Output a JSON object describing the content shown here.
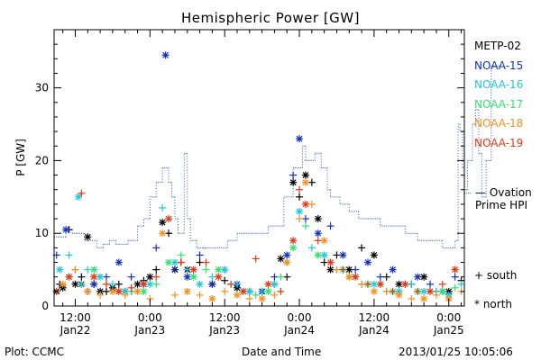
{
  "colors": {
    "METP-02": "#000000",
    "NOAA-15": "#1030c0",
    "NOAA-16": "#20c8d8",
    "NOAA-17": "#30e070",
    "NOAA-18": "#f09020",
    "NOAA-19": "#e03818",
    "hpi_line": "#2a5fc0"
  },
  "labels": {
    "footer_left": "Plot: CCMC",
    "footer_right": "2013/01/25 10:05:06",
    "hpi_line1": "— Ovation",
    "hpi_line2": "Prime HPI",
    "south": "+ south",
    "north": "* north"
  },
  "chart_data": {
    "type": "scatter",
    "title": "Hemispheric Power [GW]",
    "xlabel": "Date and Time",
    "ylabel": "P [GW]",
    "ylim": [
      0,
      38
    ],
    "xlim_hours": [
      -3.4,
      62.5
    ],
    "y_ticks": [
      0,
      10,
      20,
      30
    ],
    "x_ticks": [
      {
        "hour": 0,
        "line1": "12:00",
        "line2": "Jan22"
      },
      {
        "hour": 12,
        "line1": "0:00",
        "line2": "Jan23"
      },
      {
        "hour": 24,
        "line1": "12:00",
        "line2": "Jan23"
      },
      {
        "hour": 36,
        "line1": "0:00",
        "line2": "Jan24"
      },
      {
        "hour": 48,
        "line1": "12:00",
        "line2": "Jan24"
      },
      {
        "hour": 60,
        "line1": "0:00",
        "line2": "Jan25"
      }
    ],
    "legend": [
      "METP-02",
      "NOAA-15",
      "NOAA-16",
      "NOAA-17",
      "NOAA-18",
      "NOAA-19"
    ],
    "hpi": {
      "name": "Ovation Prime HPI",
      "x": [
        -3.4,
        -1.5,
        -0.5,
        1.5,
        3.5,
        4.5,
        5.5,
        6.5,
        8.5,
        10.0,
        11.0,
        12.0,
        13.0,
        14.0,
        15.0,
        15.5,
        16.0,
        16.5,
        17.5,
        18.0,
        18.5,
        19.5,
        20.5,
        21.0,
        22.5,
        24.5,
        26.0,
        27.5,
        29.0,
        31.0,
        33.5,
        35.0,
        36.5,
        37.0,
        38.5,
        39.5,
        40.5,
        41.0,
        42.5,
        44.0,
        45.5,
        47.0,
        49.0,
        51.0,
        53.0,
        55.0,
        57.0,
        59.0,
        60.5,
        61.0,
        61.5,
        61.8,
        62.2,
        62.5,
        63.0,
        63.8,
        64.3,
        64.8,
        65.3,
        66.0,
        66.8,
        67.2
      ],
      "y": [
        9.5,
        10.5,
        10,
        9,
        8,
        8.5,
        9,
        8.5,
        9,
        11,
        12,
        15,
        17,
        19,
        17,
        15,
        12,
        10,
        21,
        12,
        9,
        8,
        8,
        8,
        8,
        9,
        10,
        10,
        10,
        11,
        15,
        19,
        22,
        20,
        21,
        19,
        16,
        15,
        14,
        13,
        12,
        12,
        11,
        11,
        10,
        9,
        9,
        8,
        8,
        9,
        25,
        24,
        19,
        16,
        20,
        25,
        27,
        21,
        15,
        20,
        33,
        33
      ],
      "y_value_at": 15.5
    },
    "series": [
      {
        "name": "METP-02",
        "marker": "mix",
        "x": [
          -3,
          -2.5,
          -2,
          -1,
          0,
          1,
          2,
          3,
          4,
          5,
          6,
          7,
          8,
          9,
          10,
          11,
          12,
          13,
          14,
          15,
          16,
          17,
          18,
          20,
          22,
          24,
          26,
          28,
          30,
          32,
          33,
          34,
          35,
          36,
          37,
          38,
          39,
          40,
          41,
          42,
          44,
          46,
          48,
          50,
          52,
          54,
          56,
          58,
          60,
          62,
          64,
          65,
          66,
          67
        ],
        "y": [
          2,
          3,
          2.5,
          10.5,
          3,
          4,
          9.5,
          3,
          2,
          2,
          2.5,
          3,
          2,
          2,
          3,
          3.5,
          4,
          5,
          11.5,
          10,
          5,
          6,
          5,
          6,
          3,
          3.5,
          2.5,
          2,
          2,
          3,
          6.5,
          4,
          17,
          15,
          18,
          17,
          12,
          6,
          5,
          7,
          5,
          8,
          7,
          4,
          3,
          3,
          4,
          2,
          2,
          3.5,
          5.5,
          8,
          5,
          5
        ]
      },
      {
        "name": "NOAA-15",
        "marker": "mix",
        "x": [
          -3,
          -1.5,
          0,
          1,
          2,
          3,
          5,
          7,
          9,
          11,
          13,
          14.5,
          16,
          18,
          20,
          22,
          24,
          26,
          28,
          30,
          32,
          34,
          35,
          36,
          37,
          39,
          41,
          43,
          45,
          47,
          49,
          51,
          53,
          55,
          57,
          59,
          61,
          63,
          64,
          65,
          66
        ],
        "y": [
          7,
          10.5,
          5,
          3,
          2,
          3,
          4,
          6,
          4,
          3,
          8,
          34.5,
          5,
          4,
          7,
          3,
          5,
          3,
          2,
          2,
          4,
          7,
          18,
          23,
          12,
          10,
          11,
          7,
          5,
          6,
          4,
          5,
          3,
          4,
          3,
          2,
          4,
          9,
          8,
          6,
          5.5
        ]
      },
      {
        "name": "NOAA-16",
        "marker": "mix",
        "x": [
          -2.5,
          -1,
          0.5,
          2,
          4,
          6,
          8,
          10,
          12,
          14,
          16,
          18,
          20,
          22,
          24,
          26,
          28,
          30,
          32,
          34,
          36,
          38,
          40,
          42,
          44,
          46,
          48,
          50,
          52,
          54,
          56,
          58,
          60,
          62,
          64,
          66
        ],
        "y": [
          5,
          7,
          15,
          5,
          4,
          3,
          2,
          2,
          3,
          13.5,
          6,
          5,
          3,
          4,
          5,
          3,
          2,
          2,
          3,
          6,
          13,
          8,
          7,
          5,
          4,
          3,
          3,
          2,
          2,
          3,
          2,
          2,
          1.5,
          3,
          4,
          3
        ]
      },
      {
        "name": "NOAA-17",
        "marker": "mix",
        "x": [
          -3,
          -1,
          1,
          3,
          5,
          7,
          9,
          11,
          13,
          15,
          17,
          19,
          21,
          23,
          25,
          27,
          29,
          31,
          33,
          35,
          37,
          39,
          41,
          43,
          45,
          47,
          49,
          51,
          53,
          55,
          57,
          59,
          61,
          63,
          65
        ],
        "y": [
          2,
          4,
          3,
          5,
          3,
          2,
          2,
          2,
          3,
          6,
          7,
          4,
          5,
          5,
          3,
          2,
          1.5,
          2,
          4,
          8,
          11,
          7,
          6,
          5,
          4,
          3,
          3,
          2,
          3,
          2,
          2,
          2,
          2.5,
          3,
          3
        ]
      },
      {
        "name": "NOAA-18",
        "marker": "mix",
        "x": [
          -2,
          0,
          2,
          4,
          6,
          8,
          10,
          12,
          14,
          16,
          18,
          20,
          22,
          24,
          26,
          28,
          30,
          32,
          34,
          36,
          37,
          38,
          40,
          42,
          44,
          46,
          48,
          50,
          52,
          54,
          56,
          58,
          60,
          62,
          64,
          66
        ],
        "y": [
          3,
          5,
          2,
          1.5,
          2,
          1.5,
          2,
          1,
          10,
          1.5,
          2,
          1.5,
          1,
          2,
          1.5,
          1,
          1,
          1.5,
          6,
          12,
          17,
          14,
          9,
          5,
          4,
          3,
          2,
          2,
          1.5,
          1,
          1,
          1.5,
          1,
          2,
          5,
          3
        ]
      },
      {
        "name": "NOAA-19",
        "marker": "mix",
        "x": [
          -3,
          -1,
          1,
          3,
          5,
          7,
          9,
          11,
          13,
          15,
          17,
          19,
          21,
          23,
          25,
          27,
          29,
          31,
          33,
          35,
          36,
          37,
          39,
          41,
          43,
          45,
          47,
          49,
          51,
          53,
          55,
          57,
          59,
          61,
          63,
          65
        ],
        "y": [
          2,
          4,
          15.5,
          4,
          3,
          2,
          2.5,
          3,
          4,
          12,
          6,
          5,
          6,
          4,
          3,
          2,
          6.5,
          3,
          2,
          9,
          16,
          14,
          9,
          6,
          5,
          4,
          3,
          3,
          2,
          3,
          2,
          2,
          3,
          5,
          11,
          6
        ]
      }
    ]
  }
}
